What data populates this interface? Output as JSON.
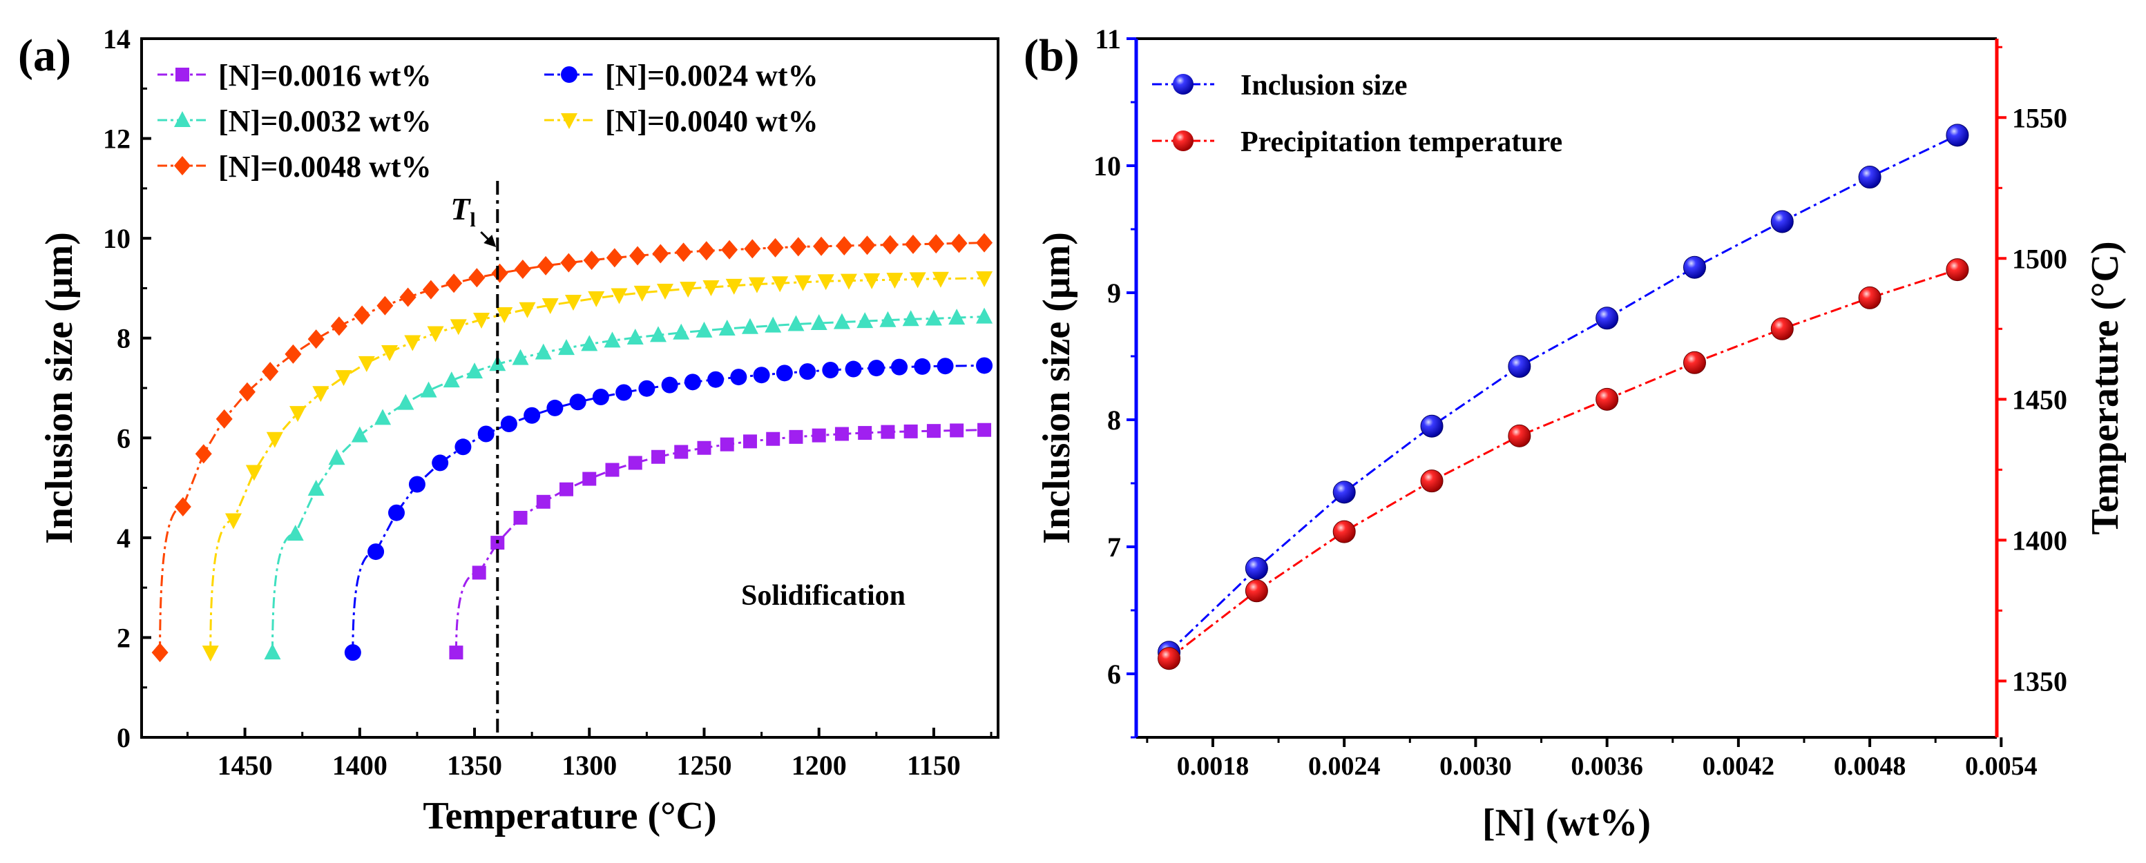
{
  "panels": {
    "a_label": "(a)",
    "b_label": "(b)"
  },
  "chart_data": [
    {
      "id": "a",
      "type": "line",
      "xlabel": "Temperature (°C)",
      "ylabel": "Inclusion size (μm)",
      "xlim": [
        1495,
        1122
      ],
      "ylim": [
        0,
        14
      ],
      "x_ticks": [
        "1450",
        "1400",
        "1350",
        "1300",
        "1250",
        "1200",
        "1150"
      ],
      "y_ticks": [
        "0",
        "2",
        "4",
        "6",
        "8",
        "10",
        "12",
        "14"
      ],
      "legend": "top-left",
      "annotations": {
        "liquidus_symbol": "T",
        "liquidus_subscript": "l",
        "liquidus_temperature": 1340,
        "region_text": "Solidification"
      },
      "series": [
        {
          "name": "[N]=0.0016 wt%",
          "marker": "square",
          "color": "#a020f0",
          "x": [
            1358,
            1348,
            1340,
            1330,
            1320,
            1310,
            1300,
            1290,
            1280,
            1270,
            1260,
            1250,
            1240,
            1230,
            1220,
            1210,
            1200,
            1190,
            1180,
            1170,
            1160,
            1150,
            1140,
            1128
          ],
          "y": [
            1.7,
            3.3,
            3.9,
            4.4,
            4.72,
            4.97,
            5.18,
            5.36,
            5.5,
            5.62,
            5.72,
            5.8,
            5.87,
            5.93,
            5.98,
            6.02,
            6.05,
            6.08,
            6.1,
            6.12,
            6.13,
            6.14,
            6.15,
            6.16
          ]
        },
        {
          "name": "[N]=0.0024 wt%",
          "marker": "circle",
          "color": "#0000ff",
          "x": [
            1403,
            1393,
            1384,
            1375,
            1365,
            1355,
            1345,
            1335,
            1325,
            1315,
            1305,
            1295,
            1285,
            1275,
            1265,
            1255,
            1245,
            1235,
            1225,
            1215,
            1205,
            1195,
            1185,
            1175,
            1165,
            1155,
            1145,
            1128
          ],
          "y": [
            1.7,
            3.72,
            4.5,
            5.07,
            5.5,
            5.82,
            6.08,
            6.28,
            6.45,
            6.6,
            6.72,
            6.82,
            6.91,
            6.99,
            7.06,
            7.12,
            7.17,
            7.22,
            7.26,
            7.3,
            7.33,
            7.36,
            7.38,
            7.4,
            7.42,
            7.43,
            7.44,
            7.45
          ]
        },
        {
          "name": "[N]=0.0032 wt%",
          "marker": "triangle-up",
          "color": "#40e0c0",
          "x": [
            1438,
            1428,
            1419,
            1410,
            1400,
            1390,
            1380,
            1370,
            1360,
            1350,
            1340,
            1330,
            1320,
            1310,
            1300,
            1290,
            1280,
            1270,
            1260,
            1250,
            1240,
            1230,
            1220,
            1210,
            1200,
            1190,
            1180,
            1170,
            1160,
            1150,
            1140,
            1128
          ],
          "y": [
            1.7,
            4.08,
            4.98,
            5.6,
            6.05,
            6.4,
            6.7,
            6.95,
            7.15,
            7.33,
            7.48,
            7.6,
            7.71,
            7.8,
            7.88,
            7.95,
            8.01,
            8.06,
            8.11,
            8.15,
            8.19,
            8.22,
            8.25,
            8.28,
            8.3,
            8.32,
            8.34,
            8.36,
            8.38,
            8.39,
            8.41,
            8.43
          ]
        },
        {
          "name": "[N]=0.0040 wt%",
          "marker": "triangle-down",
          "color": "#ffd700",
          "x": [
            1465,
            1455,
            1446,
            1437,
            1427,
            1417,
            1407,
            1397,
            1387,
            1377,
            1367,
            1357,
            1347,
            1337,
            1327,
            1317,
            1307,
            1297,
            1287,
            1277,
            1267,
            1257,
            1247,
            1237,
            1227,
            1217,
            1207,
            1197,
            1187,
            1177,
            1167,
            1157,
            1147,
            1128
          ],
          "y": [
            1.7,
            4.35,
            5.32,
            5.98,
            6.5,
            6.9,
            7.22,
            7.5,
            7.72,
            7.92,
            8.1,
            8.24,
            8.37,
            8.48,
            8.58,
            8.66,
            8.73,
            8.8,
            8.86,
            8.91,
            8.95,
            8.99,
            9.02,
            9.05,
            9.08,
            9.1,
            9.12,
            9.14,
            9.15,
            9.16,
            9.17,
            9.18,
            9.19,
            9.2
          ]
        },
        {
          "name": "[N]=0.0048 wt%",
          "marker": "diamond",
          "color": "#ff4500",
          "x": [
            1487,
            1477,
            1468,
            1459,
            1449,
            1439,
            1429,
            1419,
            1409,
            1399,
            1389,
            1379,
            1369,
            1359,
            1349,
            1339,
            1329,
            1319,
            1309,
            1299,
            1289,
            1279,
            1269,
            1259,
            1249,
            1239,
            1229,
            1219,
            1209,
            1199,
            1189,
            1179,
            1169,
            1159,
            1149,
            1139,
            1128
          ],
          "y": [
            1.7,
            4.62,
            5.68,
            6.38,
            6.92,
            7.33,
            7.68,
            7.98,
            8.24,
            8.46,
            8.65,
            8.82,
            8.97,
            9.1,
            9.21,
            9.3,
            9.38,
            9.45,
            9.51,
            9.56,
            9.61,
            9.65,
            9.69,
            9.72,
            9.75,
            9.77,
            9.79,
            9.81,
            9.83,
            9.84,
            9.85,
            9.86,
            9.87,
            9.88,
            9.89,
            9.9,
            9.91
          ]
        }
      ]
    },
    {
      "id": "b",
      "type": "line",
      "xlabel": "[N] (wt%)",
      "ylabel": "Inclusion size (μm)",
      "y2label": "Temperature (°C)",
      "xlim": [
        0.00145,
        0.00538
      ],
      "ylim": [
        5.5,
        11
      ],
      "y2lim": [
        1330,
        1578
      ],
      "x_ticks": [
        "0.0018",
        "0.0024",
        "0.0030",
        "0.0036",
        "0.0042",
        "0.0048",
        "0.0054"
      ],
      "y_ticks": [
        "6",
        "7",
        "8",
        "9",
        "10",
        "11"
      ],
      "y2_ticks": [
        "1350",
        "1400",
        "1450",
        "1500",
        "1550"
      ],
      "legend": "top-left",
      "x": [
        0.0016,
        0.002,
        0.0024,
        0.0028,
        0.0032,
        0.0036,
        0.004,
        0.0044,
        0.0048,
        0.0052
      ],
      "series": [
        {
          "name": "Inclusion size",
          "axis": "left",
          "color": "#0000ff",
          "values": [
            6.17,
            6.83,
            7.43,
            7.95,
            8.42,
            8.8,
            9.2,
            9.56,
            9.91,
            10.24
          ]
        },
        {
          "name": "Precipitation temperature",
          "axis": "right",
          "color": "#ff0000",
          "values": [
            1358,
            1382,
            1403,
            1421,
            1437,
            1450,
            1463,
            1475,
            1486,
            1496
          ]
        }
      ]
    }
  ]
}
